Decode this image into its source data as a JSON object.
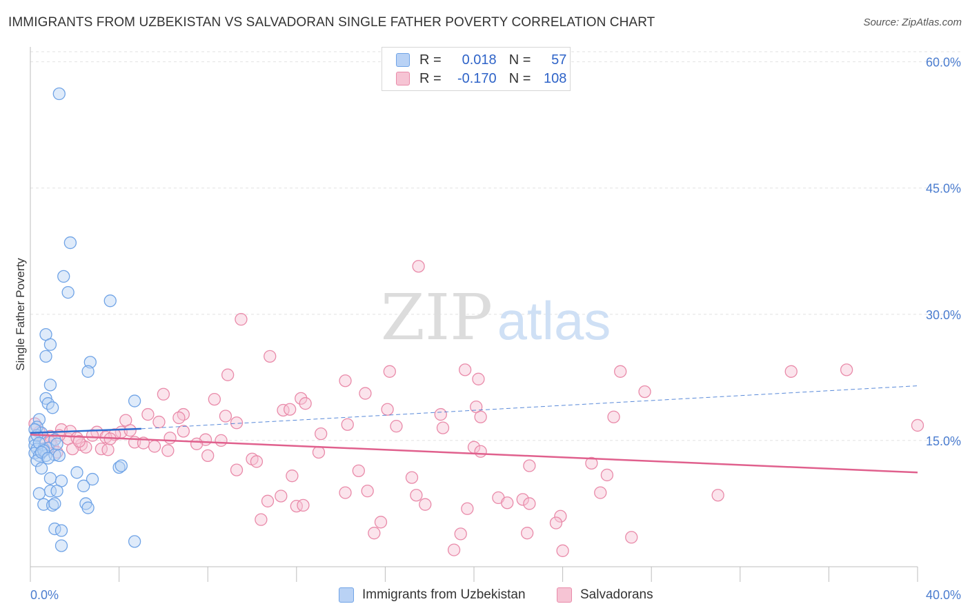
{
  "title": "IMMIGRANTS FROM UZBEKISTAN VS SALVADORAN SINGLE FATHER POVERTY CORRELATION CHART",
  "source": "Source: ZipAtlas.com",
  "watermark": {
    "zip": "ZIP",
    "atlas": "atlas"
  },
  "colors": {
    "blue": "#6fa3e6",
    "blue_fill": "#b9d2f5",
    "blue_line": "#2e6ccf",
    "pink": "#e98aa9",
    "pink_fill": "#f6c4d4",
    "pink_line": "#e0608d",
    "axis_text": "#4a7ccf",
    "grid": "#e2e2e2"
  },
  "legend": {
    "rows": [
      {
        "r_label": "R =",
        "r_value": "0.018",
        "n_label": "N =",
        "n_value": "57"
      },
      {
        "r_label": "R =",
        "r_value": "-0.170",
        "n_label": "N =",
        "n_value": "108"
      }
    ]
  },
  "bottom_legend": {
    "series1": "Immigrants from Uzbekistan",
    "series2": "Salvadorans"
  },
  "chart_data": {
    "type": "scatter",
    "title": "IMMIGRANTS FROM UZBEKISTAN VS SALVADORAN SINGLE FATHER POVERTY CORRELATION CHART",
    "xlabel": "",
    "ylabel": "Single Father Poverty",
    "xlim": [
      0,
      40
    ],
    "ylim": [
      0,
      62
    ],
    "x_tick_labels": [
      "0.0%",
      "40.0%"
    ],
    "y_ticks": [
      15,
      30,
      45,
      60
    ],
    "y_tick_labels": [
      "15.0%",
      "30.0%",
      "45.0%",
      "60.0%"
    ],
    "grid": true,
    "series": [
      {
        "name": "Immigrants from Uzbekistan",
        "r": 0.018,
        "n": 57,
        "trend": {
          "x": [
            0,
            5
          ],
          "y": [
            15.9,
            16.4
          ],
          "dashed_extension": {
            "x": [
              5,
              40
            ],
            "y": [
              16.4,
              21.5
            ]
          }
        },
        "points": [
          [
            1.3,
            56.2
          ],
          [
            1.8,
            38.5
          ],
          [
            1.5,
            34.5
          ],
          [
            1.7,
            32.6
          ],
          [
            3.6,
            31.6
          ],
          [
            0.7,
            27.6
          ],
          [
            0.9,
            26.4
          ],
          [
            0.7,
            25.0
          ],
          [
            2.7,
            24.3
          ],
          [
            2.6,
            23.2
          ],
          [
            0.9,
            21.6
          ],
          [
            0.7,
            20.0
          ],
          [
            0.8,
            19.4
          ],
          [
            4.7,
            19.7
          ],
          [
            1.0,
            18.9
          ],
          [
            0.4,
            17.5
          ],
          [
            0.3,
            16.6
          ],
          [
            0.5,
            15.9
          ],
          [
            0.2,
            15.1
          ],
          [
            1.1,
            15.1
          ],
          [
            0.2,
            14.4
          ],
          [
            0.3,
            14.0
          ],
          [
            0.6,
            14.0
          ],
          [
            0.8,
            14.1
          ],
          [
            0.2,
            13.5
          ],
          [
            0.4,
            13.2
          ],
          [
            0.7,
            13.2
          ],
          [
            1.1,
            13.3
          ],
          [
            1.3,
            13.2
          ],
          [
            0.3,
            12.6
          ],
          [
            0.5,
            11.7
          ],
          [
            4.0,
            11.8
          ],
          [
            4.1,
            12.0
          ],
          [
            2.1,
            11.2
          ],
          [
            2.8,
            10.4
          ],
          [
            0.9,
            10.5
          ],
          [
            1.4,
            10.2
          ],
          [
            2.4,
            9.6
          ],
          [
            0.9,
            9.0
          ],
          [
            1.2,
            9.0
          ],
          [
            0.4,
            8.7
          ],
          [
            0.6,
            7.4
          ],
          [
            1.0,
            7.3
          ],
          [
            1.1,
            7.5
          ],
          [
            2.5,
            7.5
          ],
          [
            2.6,
            7.0
          ],
          [
            1.1,
            4.5
          ],
          [
            1.4,
            4.3
          ],
          [
            4.7,
            3.0
          ],
          [
            1.4,
            2.5
          ],
          [
            0.3,
            15.6
          ],
          [
            0.4,
            14.7
          ],
          [
            0.6,
            13.8
          ],
          [
            0.5,
            13.6
          ],
          [
            0.8,
            12.9
          ],
          [
            1.2,
            14.6
          ],
          [
            0.2,
            16.3
          ]
        ]
      },
      {
        "name": "Salvadorans",
        "r": -0.17,
        "n": 108,
        "trend": {
          "x": [
            0,
            40
          ],
          "y": [
            15.7,
            11.2
          ]
        },
        "points": [
          [
            17.5,
            35.7
          ],
          [
            9.5,
            29.4
          ],
          [
            10.8,
            25.0
          ],
          [
            19.6,
            23.4
          ],
          [
            36.8,
            23.4
          ],
          [
            16.2,
            23.2
          ],
          [
            26.6,
            23.2
          ],
          [
            8.9,
            22.8
          ],
          [
            14.2,
            22.1
          ],
          [
            20.2,
            22.3
          ],
          [
            34.3,
            23.2
          ],
          [
            15.1,
            20.6
          ],
          [
            6.0,
            20.5
          ],
          [
            27.7,
            20.8
          ],
          [
            12.2,
            20.0
          ],
          [
            8.3,
            19.9
          ],
          [
            12.4,
            19.4
          ],
          [
            20.1,
            19.0
          ],
          [
            11.4,
            18.6
          ],
          [
            11.7,
            18.7
          ],
          [
            16.1,
            18.7
          ],
          [
            5.3,
            18.1
          ],
          [
            6.9,
            18.1
          ],
          [
            6.7,
            17.7
          ],
          [
            8.8,
            17.9
          ],
          [
            18.5,
            18.1
          ],
          [
            20.3,
            17.8
          ],
          [
            26.3,
            17.8
          ],
          [
            4.3,
            17.4
          ],
          [
            5.8,
            17.2
          ],
          [
            9.3,
            17.1
          ],
          [
            14.3,
            16.9
          ],
          [
            16.5,
            16.7
          ],
          [
            40.0,
            16.8
          ],
          [
            18.6,
            16.5
          ],
          [
            1.4,
            16.3
          ],
          [
            3.0,
            16.0
          ],
          [
            4.1,
            16.0
          ],
          [
            6.9,
            16.1
          ],
          [
            13.1,
            15.8
          ],
          [
            4.5,
            16.2
          ],
          [
            3.8,
            15.7
          ],
          [
            0.9,
            15.5
          ],
          [
            1.7,
            15.2
          ],
          [
            3.4,
            15.4
          ],
          [
            6.3,
            15.3
          ],
          [
            7.9,
            15.1
          ],
          [
            8.6,
            15.0
          ],
          [
            4.7,
            14.8
          ],
          [
            7.5,
            14.6
          ],
          [
            5.1,
            14.7
          ],
          [
            2.3,
            14.5
          ],
          [
            2.5,
            14.2
          ],
          [
            3.2,
            14.0
          ],
          [
            5.6,
            14.3
          ],
          [
            1.9,
            14.0
          ],
          [
            3.5,
            13.9
          ],
          [
            6.2,
            13.8
          ],
          [
            13.0,
            13.6
          ],
          [
            20.0,
            14.2
          ],
          [
            20.3,
            13.7
          ],
          [
            8.0,
            13.2
          ],
          [
            10.0,
            12.8
          ],
          [
            10.2,
            12.5
          ],
          [
            22.5,
            12.0
          ],
          [
            25.3,
            12.3
          ],
          [
            9.3,
            11.5
          ],
          [
            14.8,
            11.4
          ],
          [
            11.8,
            10.8
          ],
          [
            17.2,
            10.6
          ],
          [
            26.0,
            10.9
          ],
          [
            14.2,
            8.8
          ],
          [
            15.2,
            9.0
          ],
          [
            25.7,
            8.8
          ],
          [
            11.3,
            8.4
          ],
          [
            17.4,
            8.5
          ],
          [
            21.1,
            8.2
          ],
          [
            22.2,
            8.0
          ],
          [
            31.0,
            8.5
          ],
          [
            10.7,
            7.8
          ],
          [
            12.0,
            7.2
          ],
          [
            12.3,
            7.3
          ],
          [
            17.8,
            7.4
          ],
          [
            21.5,
            7.6
          ],
          [
            22.5,
            7.5
          ],
          [
            19.7,
            6.9
          ],
          [
            23.9,
            6.0
          ],
          [
            10.4,
            5.6
          ],
          [
            15.8,
            5.3
          ],
          [
            23.7,
            5.2
          ],
          [
            15.5,
            4.0
          ],
          [
            19.4,
            3.9
          ],
          [
            22.4,
            4.0
          ],
          [
            27.1,
            3.5
          ],
          [
            19.1,
            2.0
          ],
          [
            24.0,
            1.9
          ],
          [
            1.0,
            14.3
          ],
          [
            1.3,
            15.6
          ],
          [
            1.8,
            16.1
          ],
          [
            2.1,
            15.3
          ],
          [
            2.8,
            15.6
          ],
          [
            3.6,
            15.2
          ],
          [
            0.4,
            16.0
          ],
          [
            0.6,
            15.3
          ],
          [
            0.9,
            14.8
          ],
          [
            0.2,
            17.0
          ],
          [
            1.2,
            13.6
          ],
          [
            2.2,
            14.9
          ]
        ]
      }
    ]
  }
}
